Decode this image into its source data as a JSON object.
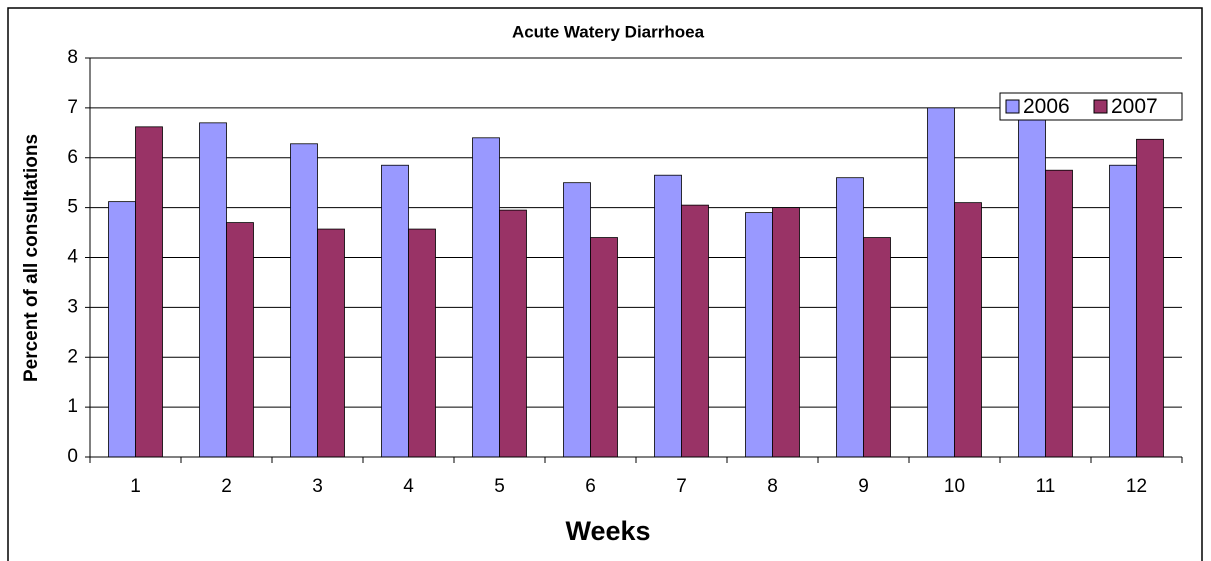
{
  "chart_data": {
    "type": "bar",
    "title": "Acute Watery Diarrhoea",
    "x_label": "Weeks",
    "y_label": "Percent of all consultations",
    "categories": [
      "1",
      "2",
      "3",
      "4",
      "5",
      "6",
      "7",
      "8",
      "9",
      "10",
      "11",
      "12"
    ],
    "series": [
      {
        "name": "2006",
        "color": "#9999ff",
        "values": [
          5.12,
          6.7,
          6.28,
          5.85,
          6.4,
          5.5,
          5.65,
          4.9,
          5.6,
          7.0,
          7.25,
          5.85
        ]
      },
      {
        "name": "2007",
        "color": "#993366",
        "values": [
          6.62,
          4.7,
          4.57,
          4.57,
          4.95,
          4.4,
          5.05,
          5.0,
          4.4,
          5.1,
          5.75,
          6.37
        ]
      }
    ],
    "ylim": [
      0,
      8
    ],
    "yticks": [
      0,
      1,
      2,
      3,
      4,
      5,
      6,
      7,
      8
    ],
    "grid": true,
    "legend": "top-right"
  }
}
